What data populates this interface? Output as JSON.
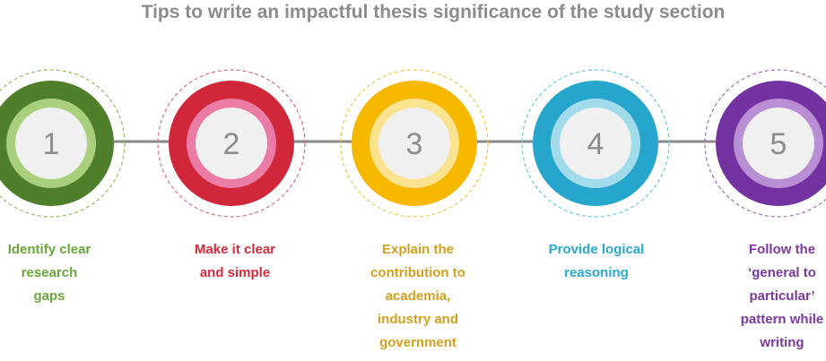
{
  "title": "Tips to write an impactful thesis significance of the study section",
  "steps": [
    {
      "number": "1",
      "lines": [
        "Identify clear",
        "research",
        "gaps"
      ]
    },
    {
      "number": "2",
      "lines": [
        "Make it clear",
        "and simple"
      ]
    },
    {
      "number": "3",
      "lines": [
        "Explain the",
        "contribution to",
        "academia,",
        "industry and",
        "government"
      ]
    },
    {
      "number": "4",
      "lines": [
        "Provide logical",
        "reasoning"
      ]
    },
    {
      "number": "5",
      "lines": [
        "Follow the",
        "‘general to",
        "particular’",
        "pattern while",
        "writing"
      ]
    }
  ]
}
